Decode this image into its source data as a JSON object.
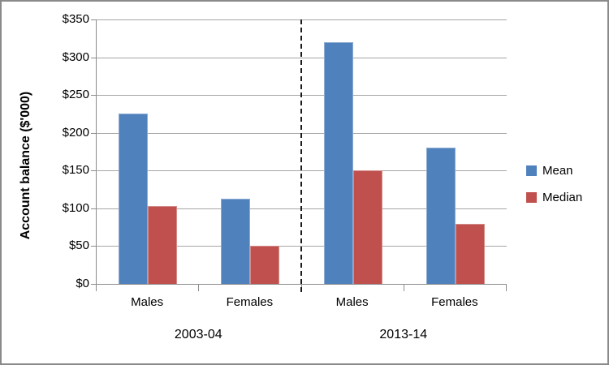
{
  "chart_data": {
    "type": "bar",
    "title": "",
    "ylabel": "Account balance ($'000)",
    "xlabel": "",
    "y_axis": {
      "min": 0,
      "max": 350,
      "step": 50,
      "ticks": [
        {
          "value": 0,
          "label": "$0"
        },
        {
          "value": 50,
          "label": "$50"
        },
        {
          "value": 100,
          "label": "$100"
        },
        {
          "value": 150,
          "label": "$150"
        },
        {
          "value": 200,
          "label": "$200"
        },
        {
          "value": 250,
          "label": "$250"
        },
        {
          "value": 300,
          "label": "$300"
        },
        {
          "value": 350,
          "label": "$350"
        }
      ]
    },
    "groups": [
      {
        "label": "2003-04",
        "categories": [
          "Males",
          "Females"
        ]
      },
      {
        "label": "2013-14",
        "categories": [
          "Males",
          "Females"
        ]
      }
    ],
    "categories": [
      "Males",
      "Females",
      "Males",
      "Females"
    ],
    "series": [
      {
        "name": "Mean",
        "color": "#4f81bd",
        "border_color": "#8cabd2",
        "values": [
          225,
          113,
          320,
          180
        ]
      },
      {
        "name": "Median",
        "color": "#c0504d",
        "border_color": "#d28d8b",
        "values": [
          103,
          50,
          150,
          80
        ]
      }
    ],
    "legend_position": "right",
    "grid": true,
    "gridline_color": "#a6a6a6",
    "axis_color": "#8c8c8c",
    "group_divider": {
      "style": "dashed",
      "color": "#000000"
    }
  }
}
